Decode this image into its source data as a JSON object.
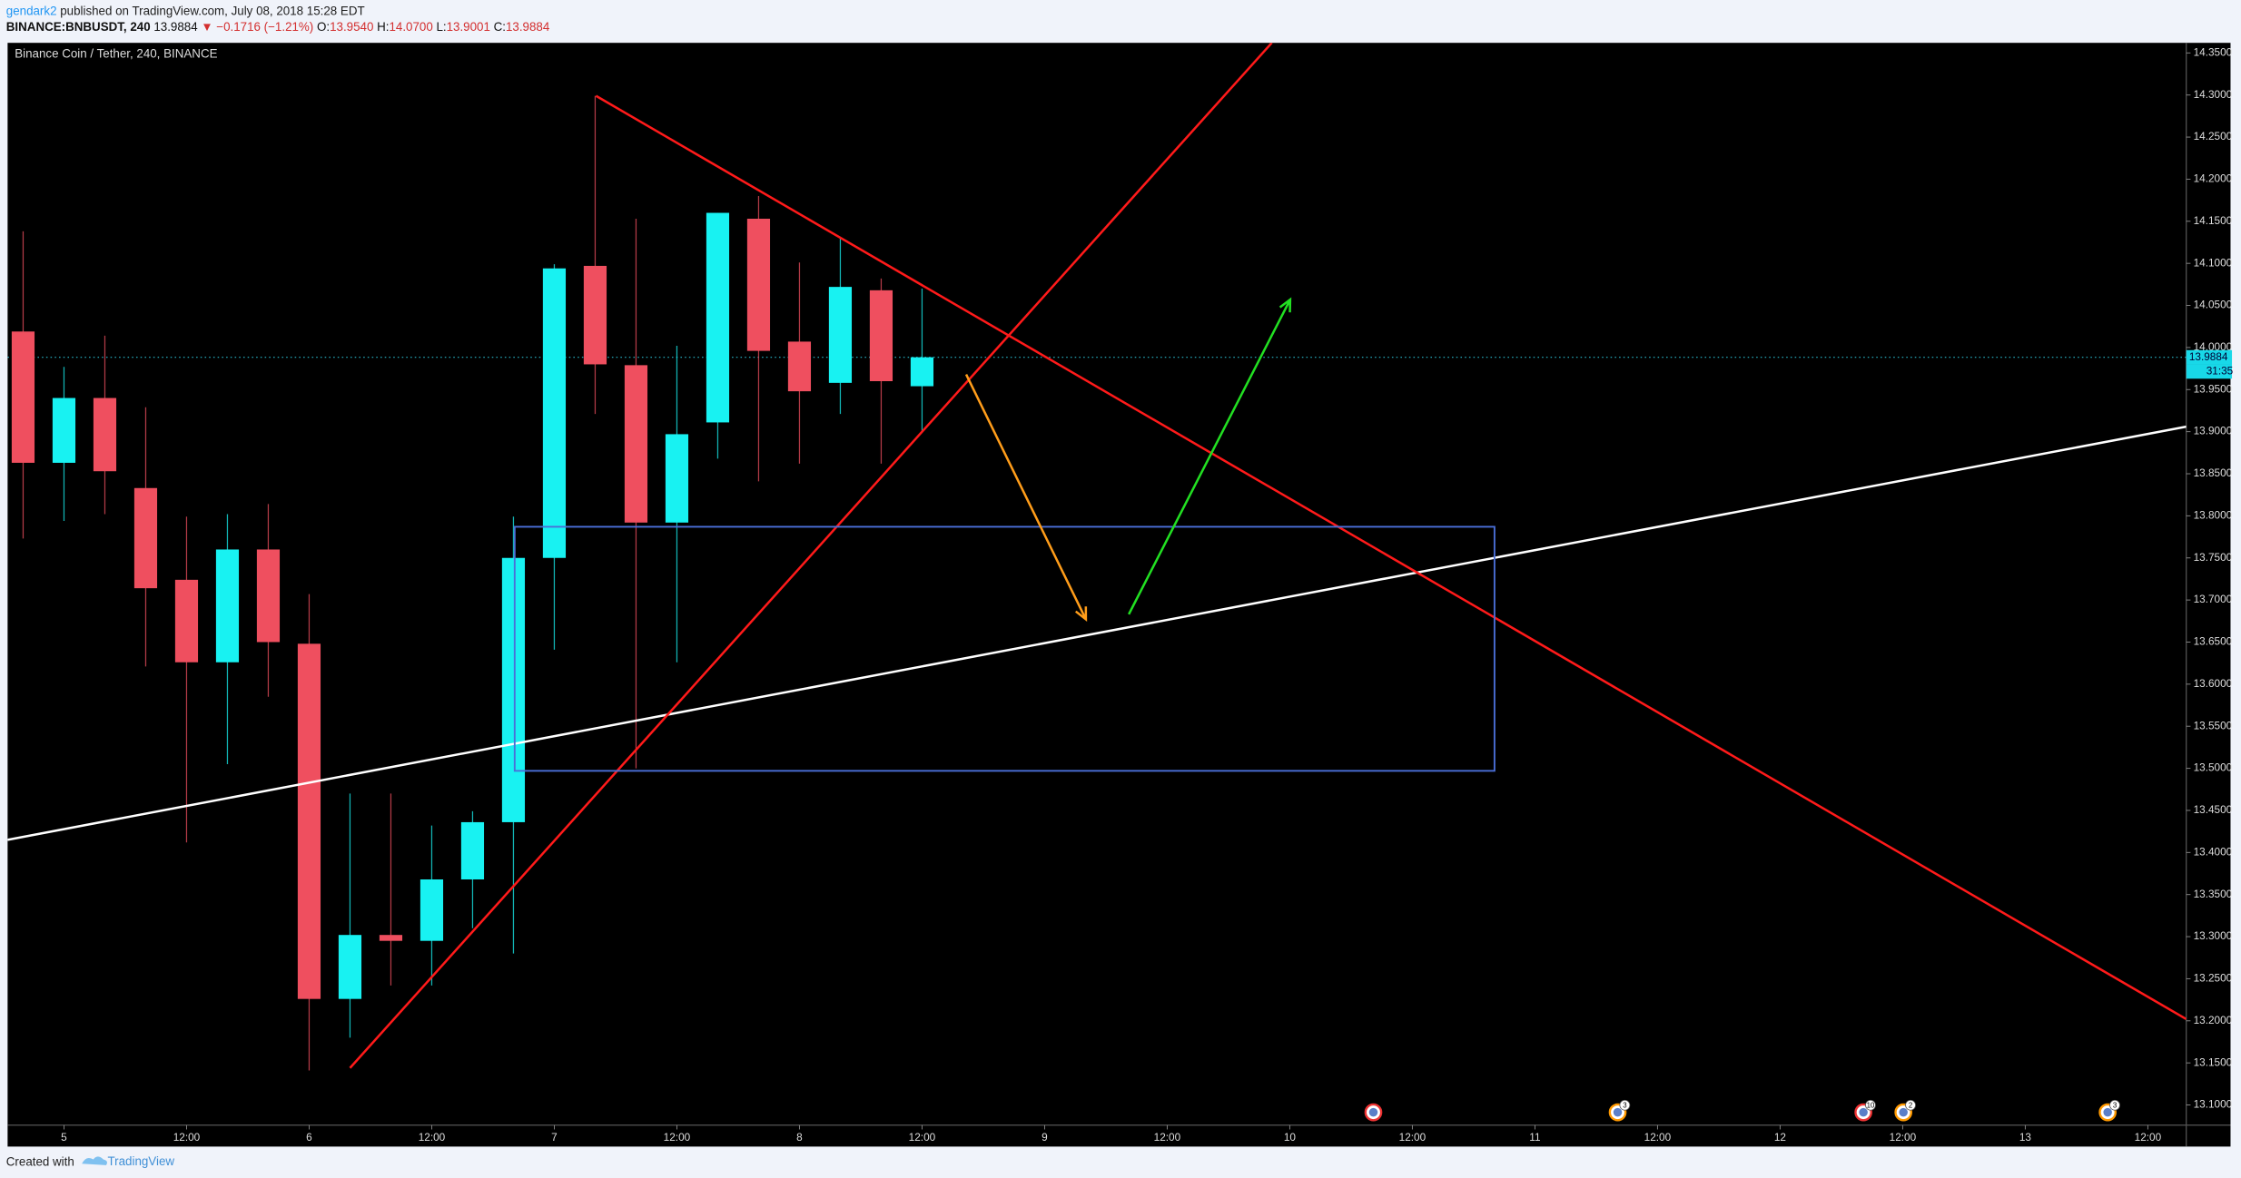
{
  "header": {
    "author": "gendark2",
    "published": " published on TradingView.com, July 08, 2018 15:28 EDT",
    "symbol": "BINANCE:BNBUSDT, 240",
    "last": " 13.9884 ",
    "change": "▼ −0.1716 (−1.21%)",
    "ohlc": [
      {
        "label": " O:",
        "value": "13.9540"
      },
      {
        "label": " H:",
        "value": "14.0700"
      },
      {
        "label": " L:",
        "value": "13.9001"
      },
      {
        "label": " C:",
        "value": "13.9884"
      }
    ]
  },
  "chart_data": {
    "type": "candlestick",
    "title": "Binance Coin / Tether, 240, BINANCE",
    "x": [
      0,
      1,
      2,
      3,
      4,
      5,
      6,
      7,
      8,
      9,
      10,
      11,
      12,
      13,
      14,
      15,
      16,
      17,
      18,
      19,
      20,
      21,
      22
    ],
    "open": [
      14.019,
      13.863,
      13.94,
      13.833,
      13.724,
      13.626,
      13.76,
      13.648,
      13.226,
      13.302,
      13.295,
      13.368,
      13.436,
      13.75,
      14.097,
      13.979,
      13.792,
      13.911,
      14.153,
      14.007,
      13.958,
      14.068,
      13.954
    ],
    "high": [
      14.138,
      13.977,
      14.014,
      13.929,
      13.799,
      13.802,
      13.814,
      13.707,
      13.47,
      13.47,
      13.432,
      13.449,
      13.799,
      14.099,
      14.299,
      14.153,
      14.002,
      14.16,
      14.18,
      14.101,
      14.131,
      14.082,
      14.07
    ],
    "low": [
      13.773,
      13.794,
      13.802,
      13.621,
      13.412,
      13.505,
      13.585,
      13.141,
      13.18,
      13.242,
      13.242,
      13.31,
      13.28,
      13.641,
      13.921,
      13.5,
      13.626,
      13.868,
      13.841,
      13.862,
      13.921,
      13.862,
      13.9001
    ],
    "close": [
      13.863,
      13.94,
      13.853,
      13.714,
      13.626,
      13.76,
      13.65,
      13.226,
      13.302,
      13.295,
      13.368,
      13.436,
      13.75,
      14.094,
      13.98,
      13.792,
      13.897,
      14.16,
      13.996,
      13.948,
      14.072,
      13.96,
      13.9884
    ],
    "up_color": "#18f2f2",
    "down_color": "#ef4f5f",
    "xlim": [
      -0.38,
      52.94
    ],
    "xticks": [
      {
        "value": 1,
        "label": "5"
      },
      {
        "value": 4,
        "label": "12:00"
      },
      {
        "value": 7,
        "label": "6"
      },
      {
        "value": 10,
        "label": "12:00"
      },
      {
        "value": 13,
        "label": "7"
      },
      {
        "value": 16,
        "label": "12:00"
      },
      {
        "value": 19,
        "label": "8"
      },
      {
        "value": 22,
        "label": "12:00"
      },
      {
        "value": 25,
        "label": "9"
      },
      {
        "value": 28,
        "label": "12:00"
      },
      {
        "value": 31,
        "label": "10"
      },
      {
        "value": 34,
        "label": "12:00"
      },
      {
        "value": 37,
        "label": "11"
      },
      {
        "value": 40,
        "label": "12:00"
      },
      {
        "value": 43,
        "label": "12"
      },
      {
        "value": 46,
        "label": "12:00"
      },
      {
        "value": 49,
        "label": "13"
      },
      {
        "value": 52,
        "label": "12:00"
      }
    ],
    "ylim": [
      13.076,
      14.362
    ],
    "yticks": [
      {
        "value": 13.1,
        "label": "13.1000"
      },
      {
        "value": 13.15,
        "label": "13.1500"
      },
      {
        "value": 13.2,
        "label": "13.2000"
      },
      {
        "value": 13.25,
        "label": "13.2500"
      },
      {
        "value": 13.3,
        "label": "13.3000"
      },
      {
        "value": 13.35,
        "label": "13.3500"
      },
      {
        "value": 13.4,
        "label": "13.4000"
      },
      {
        "value": 13.45,
        "label": "13.4500"
      },
      {
        "value": 13.5,
        "label": "13.5000"
      },
      {
        "value": 13.55,
        "label": "13.5500"
      },
      {
        "value": 13.6,
        "label": "13.6000"
      },
      {
        "value": 13.65,
        "label": "13.6500"
      },
      {
        "value": 13.7,
        "label": "13.7000"
      },
      {
        "value": 13.75,
        "label": "13.7500"
      },
      {
        "value": 13.8,
        "label": "13.8000"
      },
      {
        "value": 13.85,
        "label": "13.8500"
      },
      {
        "value": 13.9,
        "label": "13.9000"
      },
      {
        "value": 13.95,
        "label": "13.9500"
      },
      {
        "value": 14.0,
        "label": "14.0000"
      },
      {
        "value": 14.05,
        "label": "14.0500"
      },
      {
        "value": 14.1,
        "label": "14.1000"
      },
      {
        "value": 14.15,
        "label": "14.1500"
      },
      {
        "value": 14.2,
        "label": "14.2000"
      },
      {
        "value": 14.25,
        "label": "14.2500"
      },
      {
        "value": 14.3,
        "label": "14.3000"
      },
      {
        "value": 14.35,
        "label": "14.3500"
      }
    ],
    "last_price": 13.9884,
    "countdown": "31:35",
    "drawings": [
      {
        "kind": "line",
        "color": "#ffffff",
        "points": [
          [
            -0.38,
            13.415
          ],
          [
            52.94,
            13.906
          ]
        ]
      },
      {
        "kind": "line",
        "color": "#ff1a1a",
        "points": [
          [
            8.0,
            13.144
          ],
          [
            30.56,
            14.362
          ]
        ]
      },
      {
        "kind": "line",
        "color": "#ff1a1a",
        "points": [
          [
            14.02,
            14.299
          ],
          [
            52.94,
            13.202
          ]
        ]
      },
      {
        "kind": "rect",
        "color": "#4a6fd8",
        "points": [
          [
            12.03,
            13.787
          ],
          [
            36.01,
            13.497
          ]
        ]
      },
      {
        "kind": "arrow",
        "color": "#ff9d1a",
        "points": [
          [
            23.08,
            13.968
          ],
          [
            26.01,
            13.677
          ]
        ]
      },
      {
        "kind": "arrow",
        "color": "#22e022",
        "points": [
          [
            27.06,
            13.683
          ],
          [
            31.01,
            14.057
          ]
        ]
      }
    ],
    "event_badges": [
      "3",
      "10",
      "2",
      "3"
    ]
  },
  "footer": {
    "created": "Created with",
    "brand": "TradingView"
  }
}
